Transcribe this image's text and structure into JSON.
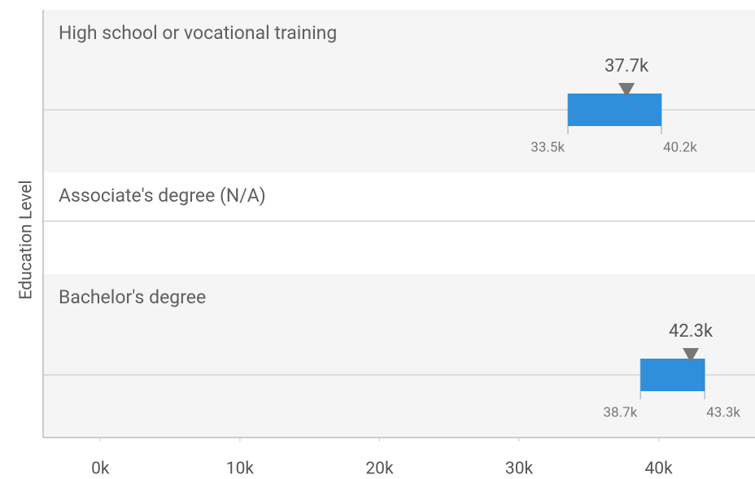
{
  "chart_data": {
    "type": "range-bar",
    "y_axis_label": "Education Level",
    "categories": [
      "High school or vocational training",
      "Associate's degree (N/A)",
      "Bachelor's degree"
    ],
    "low": [
      33500,
      null,
      38700
    ],
    "low_labels": [
      "33.5k",
      null,
      "38.7k"
    ],
    "high": [
      40200,
      null,
      43300
    ],
    "high_labels": [
      "40.2k",
      null,
      "43.3k"
    ],
    "median": [
      37700,
      null,
      42300
    ],
    "median_labels": [
      "37.7k",
      null,
      "42.3k"
    ],
    "color": "#2f8fdb",
    "xlim": [
      -4100,
      46900
    ],
    "xticks": [
      {
        "value": 0,
        "label": "0k"
      },
      {
        "value": 10000,
        "label": "10k"
      },
      {
        "value": 20000,
        "label": "20k"
      },
      {
        "value": 30000,
        "label": "30k"
      },
      {
        "value": 40000,
        "label": "40k"
      }
    ]
  }
}
